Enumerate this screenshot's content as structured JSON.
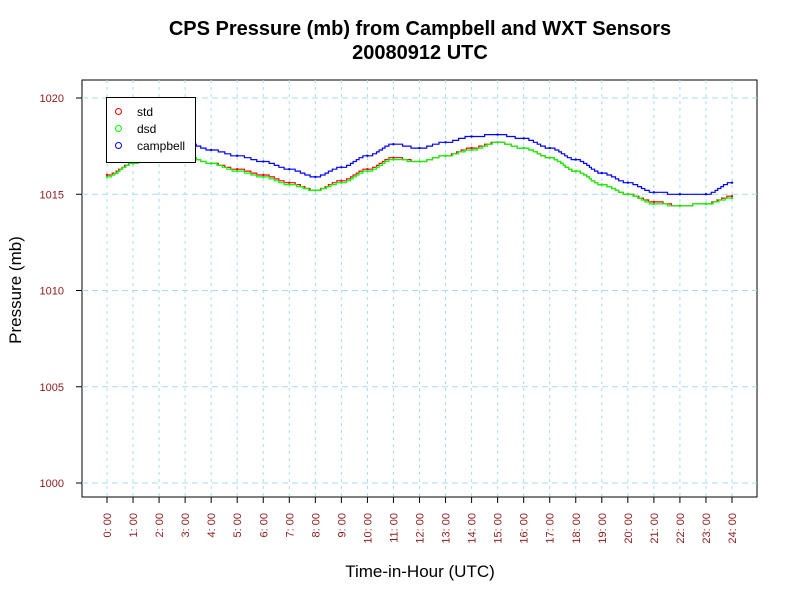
{
  "chart_data": {
    "type": "line",
    "title": "CPS Pressure (mb) from Campbell and WXT Sensors",
    "subtitle": "20080912  UTC",
    "xlabel": "Time-in-Hour (UTC)",
    "ylabel": "Pressure (mb)",
    "xlim": [
      0,
      24
    ],
    "ylim": [
      1000,
      1020
    ],
    "x_ticks": [
      "0: 00",
      "1: 00",
      "2: 00",
      "3: 00",
      "4: 00",
      "5: 00",
      "6: 00",
      "7: 00",
      "8: 00",
      "9: 00",
      "10: 00",
      "11: 00",
      "12: 00",
      "13: 00",
      "14: 00",
      "15: 00",
      "16: 00",
      "17: 00",
      "18: 00",
      "19: 00",
      "20: 00",
      "21: 00",
      "22: 00",
      "23: 00",
      "24: 00"
    ],
    "y_ticks": [
      "1000",
      "1005",
      "1010",
      "1015",
      "1020"
    ],
    "grid": true,
    "legend_position": "top-left",
    "x": [
      0,
      1,
      2,
      3,
      4,
      5,
      6,
      7,
      8,
      9,
      10,
      11,
      12,
      13,
      14,
      15,
      16,
      17,
      18,
      19,
      20,
      21,
      22,
      23,
      24
    ],
    "series": [
      {
        "name": "std",
        "color": "#ff0000",
        "values": [
          1016.0,
          1016.6,
          1017.2,
          1017.0,
          1016.6,
          1016.3,
          1016.0,
          1015.6,
          1015.2,
          1015.7,
          1016.3,
          1016.9,
          1016.7,
          1017.0,
          1017.4,
          1017.7,
          1017.4,
          1016.9,
          1016.2,
          1015.5,
          1015.0,
          1014.6,
          1014.4,
          1014.5,
          1014.9
        ]
      },
      {
        "name": "dsd",
        "color": "#00ff00",
        "values": [
          1015.9,
          1016.6,
          1017.2,
          1017.0,
          1016.6,
          1016.2,
          1015.9,
          1015.5,
          1015.2,
          1015.6,
          1016.2,
          1016.8,
          1016.7,
          1017.0,
          1017.3,
          1017.7,
          1017.4,
          1016.9,
          1016.2,
          1015.5,
          1015.0,
          1014.5,
          1014.4,
          1014.5,
          1014.8
        ]
      },
      {
        "name": "campbell",
        "color": "#0000ff",
        "values": [
          1016.7,
          1017.2,
          1017.9,
          1017.7,
          1017.3,
          1017.0,
          1016.7,
          1016.3,
          1015.9,
          1016.4,
          1017.0,
          1017.6,
          1017.4,
          1017.7,
          1018.0,
          1018.1,
          1017.9,
          1017.4,
          1016.8,
          1016.1,
          1015.6,
          1015.1,
          1015.0,
          1015.0,
          1015.6
        ]
      }
    ]
  }
}
